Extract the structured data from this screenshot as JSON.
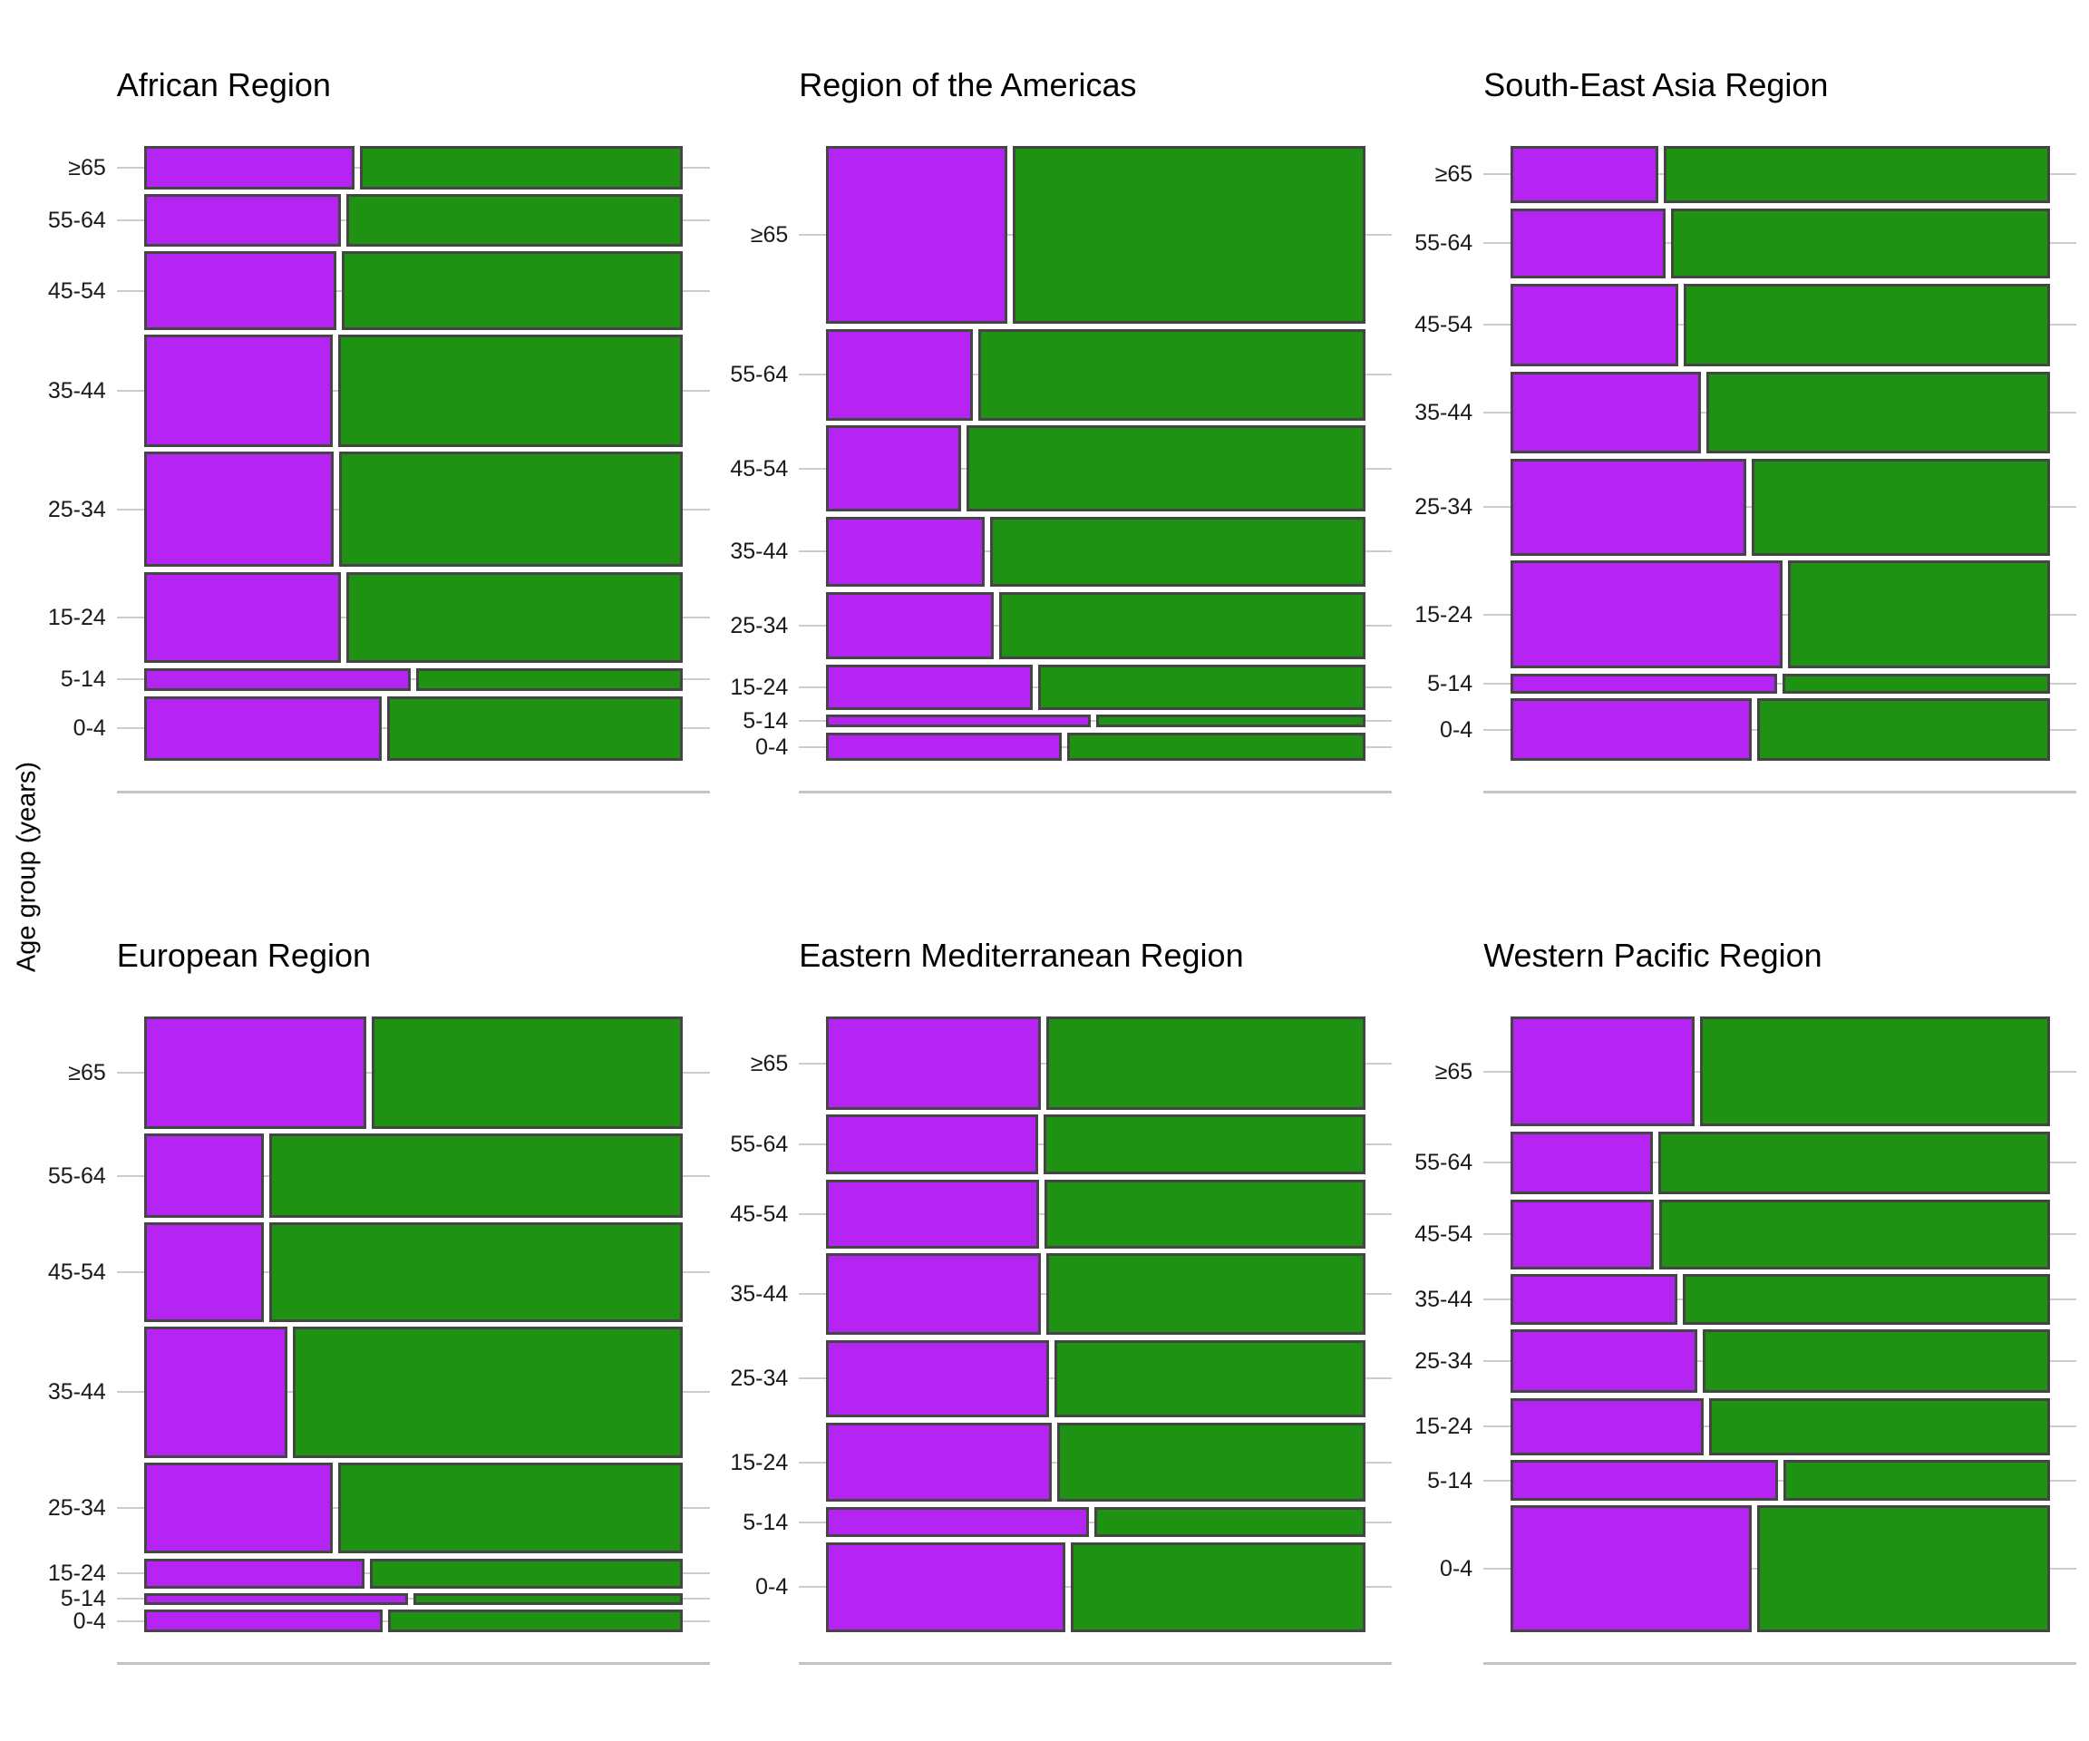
{
  "chart_data": {
    "type": "bar",
    "variant": "faceted mosaic (spine) plot: horizontal two-segment proportion bars; bar height proportional to age group's share of region total",
    "title": "",
    "xlabel": "",
    "ylabel": "Age group (years)",
    "legend": "none shown",
    "grid": "light horizontal gridlines at each age-group position; light axis line below each panel",
    "age_groups": [
      "≥65",
      "55-64",
      "45-54",
      "35-44",
      "25-34",
      "15-24",
      "5-14",
      "0-4"
    ],
    "colors": {
      "purple_fill": "#B524F2",
      "green_fill": "#1F9214",
      "bar_border": "#454545",
      "gridline": "#CCCCCC",
      "axis_line": "#C4C4C4",
      "text": "#000000"
    },
    "facets": [
      {
        "title": "African Region",
        "row_share": [
          0.075,
          0.09,
          0.135,
          0.193,
          0.198,
          0.157,
          0.04,
          0.112
        ],
        "purple_fraction": [
          0.396,
          0.37,
          0.362,
          0.355,
          0.357,
          0.37,
          0.5,
          0.447
        ]
      },
      {
        "title": "Region of the Americas",
        "row_share": [
          0.307,
          0.158,
          0.148,
          0.121,
          0.117,
          0.078,
          0.022,
          0.049
        ],
        "purple_fraction": [
          0.342,
          0.278,
          0.255,
          0.3,
          0.316,
          0.388,
          0.496,
          0.442
        ]
      },
      {
        "title": "South-East Asia Region",
        "row_share": [
          0.099,
          0.121,
          0.143,
          0.142,
          0.167,
          0.186,
          0.034,
          0.108
        ],
        "purple_fraction": [
          0.279,
          0.293,
          0.317,
          0.358,
          0.443,
          0.51,
          0.5,
          0.452
        ]
      },
      {
        "title": "European Region",
        "row_share": [
          0.193,
          0.144,
          0.171,
          0.226,
          0.156,
          0.052,
          0.019,
          0.039
        ],
        "purple_fraction": [
          0.417,
          0.227,
          0.227,
          0.271,
          0.355,
          0.415,
          0.495,
          0.448
        ]
      },
      {
        "title": "Eastern Mediterranean Region",
        "row_share": [
          0.16,
          0.103,
          0.119,
          0.14,
          0.134,
          0.137,
          0.052,
          0.155
        ],
        "purple_fraction": [
          0.404,
          0.398,
          0.4,
          0.404,
          0.419,
          0.424,
          0.492,
          0.449
        ]
      },
      {
        "title": "Western Pacific Region",
        "row_share": [
          0.189,
          0.108,
          0.121,
          0.086,
          0.11,
          0.098,
          0.07,
          0.218
        ],
        "purple_fraction": [
          0.346,
          0.269,
          0.271,
          0.315,
          0.352,
          0.364,
          0.502,
          0.452
        ]
      }
    ]
  }
}
